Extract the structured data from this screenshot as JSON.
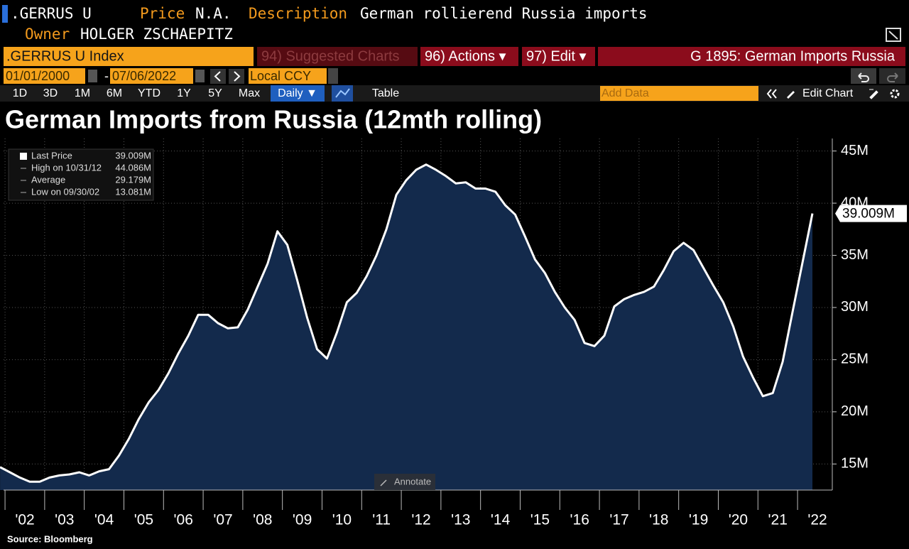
{
  "header": {
    "ticker": ".GERRUS U",
    "price_label": "Price",
    "price": "N.A.",
    "description_label": "Description",
    "description": "German rollierend Russia imports",
    "owner_label": "Owner",
    "owner": "HOLGER ZSCHAEPITZ"
  },
  "toolbar": {
    "security": ".GERRUS U Index",
    "suggested": "94) Suggested Charts",
    "actions": "96) Actions ▾",
    "edit": "97) Edit ▾",
    "chart_name": "G 1895: German Imports Russia",
    "start_date": "01/01/2000",
    "date_separator": "-",
    "end_date": "07/06/2022",
    "currency": "Local CCY",
    "periods": [
      "1D",
      "3D",
      "1M",
      "6M",
      "YTD",
      "1Y",
      "5Y",
      "Max"
    ],
    "frequency": "Daily ▼",
    "table": "Table",
    "add_data": "Add Data",
    "edit_chart": "Edit Chart"
  },
  "chart_data": {
    "type": "area",
    "title": "German Imports from Russia (12mth rolling)",
    "categories": [
      null,
      null,
      "'02",
      null,
      null,
      null,
      "'03",
      null,
      null,
      null,
      "'04",
      null,
      null,
      null,
      "'05",
      null,
      null,
      null,
      "'06",
      null,
      null,
      null,
      "'07",
      null,
      null,
      null,
      "'08",
      null,
      null,
      null,
      "'09",
      null,
      null,
      null,
      "'10",
      null,
      null,
      null,
      "'11",
      null,
      null,
      null,
      "'12",
      null,
      null,
      null,
      "'13",
      null,
      null,
      null,
      "'14",
      null,
      null,
      null,
      "'15",
      null,
      null,
      null,
      "'16",
      null,
      null,
      null,
      "'17",
      null,
      null,
      null,
      "'18",
      null,
      null,
      null,
      "'19",
      null,
      null,
      null,
      "'20",
      null,
      null,
      null,
      "'21",
      null,
      null,
      null,
      "'22"
    ],
    "values": [
      14.7,
      14.2,
      13.7,
      13.3,
      13.3,
      13.7,
      13.9,
      14.0,
      14.2,
      13.9,
      14.3,
      14.5,
      15.8,
      17.4,
      19.3,
      20.9,
      22.1,
      23.7,
      25.6,
      27.3,
      29.3,
      29.3,
      28.5,
      28.0,
      28.1,
      29.8,
      32.0,
      34.2,
      37.3,
      36.0,
      32.6,
      29.0,
      26.0,
      25.1,
      27.6,
      30.5,
      31.4,
      33.0,
      35.0,
      37.5,
      40.8,
      42.2,
      43.2,
      43.7,
      43.2,
      42.6,
      41.9,
      42.0,
      41.4,
      41.4,
      41.1,
      39.8,
      38.9,
      36.8,
      34.6,
      33.3,
      31.5,
      30.0,
      28.8,
      26.6,
      26.3,
      27.3,
      30.1,
      30.8,
      31.2,
      31.5,
      32.0,
      33.6,
      35.4,
      36.2,
      35.5,
      33.8,
      32.1,
      30.5,
      28.2,
      25.3,
      23.3,
      21.5,
      21.8,
      24.8,
      29.6,
      34.3,
      39.009
    ],
    "color": "#ffffff",
    "fill_color": "#132a4c",
    "ylim": [
      12.5,
      46.2
    ],
    "yticks": [
      {
        "value": 15,
        "label": "15M"
      },
      {
        "value": 20,
        "label": "20M"
      },
      {
        "value": 25,
        "label": "25M"
      },
      {
        "value": 30,
        "label": "30M"
      },
      {
        "value": 35,
        "label": "35M"
      },
      {
        "value": 40,
        "label": "40M"
      },
      {
        "value": 45,
        "label": "45M"
      }
    ],
    "grid": true,
    "stats": [
      {
        "name": "Last Price",
        "value": 39.009,
        "label": "39.009M"
      },
      {
        "name": "High on 10/31/12",
        "value": 44.086,
        "label": "44.086M"
      },
      {
        "name": "Average",
        "value": 29.179,
        "label": "29.179M"
      },
      {
        "name": "Low on 09/30/02",
        "value": 13.081,
        "label": "13.081M"
      }
    ],
    "annotate": "Annotate",
    "source": "Source: Bloomberg"
  }
}
